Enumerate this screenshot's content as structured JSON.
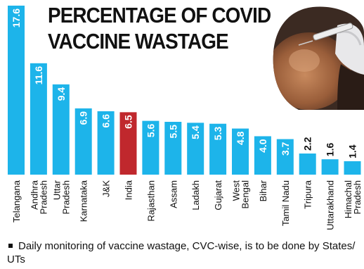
{
  "chart_data": {
    "type": "bar",
    "title_lines": [
      "PERCENTAGE OF COVID",
      "VACCINE WASTAGE"
    ],
    "categories": [
      [
        "Telangana"
      ],
      [
        "Andhra",
        "Pradesh"
      ],
      [
        "Uttar",
        "Pradesh"
      ],
      [
        "Karnataka"
      ],
      [
        "J&K"
      ],
      [
        "India"
      ],
      [
        "Rajasthan"
      ],
      [
        "Assam"
      ],
      [
        "Ladakh"
      ],
      [
        "Gujarat"
      ],
      [
        "West",
        "Bengal"
      ],
      [
        "Bihar"
      ],
      [
        "Tamil Nadu"
      ],
      [
        "Tripura"
      ],
      [
        "Uttarakhand"
      ],
      [
        "Himachal",
        "Pradesh"
      ]
    ],
    "values": [
      17.6,
      11.6,
      9.4,
      6.9,
      6.6,
      6.5,
      5.6,
      5.5,
      5.4,
      5.3,
      4.8,
      4.0,
      3.7,
      2.2,
      1.6,
      1.4
    ],
    "value_labels": [
      "17.6",
      "11.6",
      "9.4",
      "6.9",
      "6.6",
      "6.5",
      "5.6",
      "5.5",
      "5.4",
      "5.3",
      "4.8",
      "4.0",
      "3.7",
      "2.2",
      "1.6",
      "1.4"
    ],
    "highlight_index": 5,
    "ylim": [
      0,
      17.6
    ],
    "grid": false,
    "colors": {
      "bar": "#1db4ea",
      "highlight": "#c0282d",
      "inside_label": "#ffffff",
      "outside_label": "#111111"
    }
  },
  "photo": {
    "icon": "vaccine-injection-photo"
  },
  "footnote": "Daily monitoring of vaccine wastage, CVC-wise, is to be done by States/ UTs"
}
